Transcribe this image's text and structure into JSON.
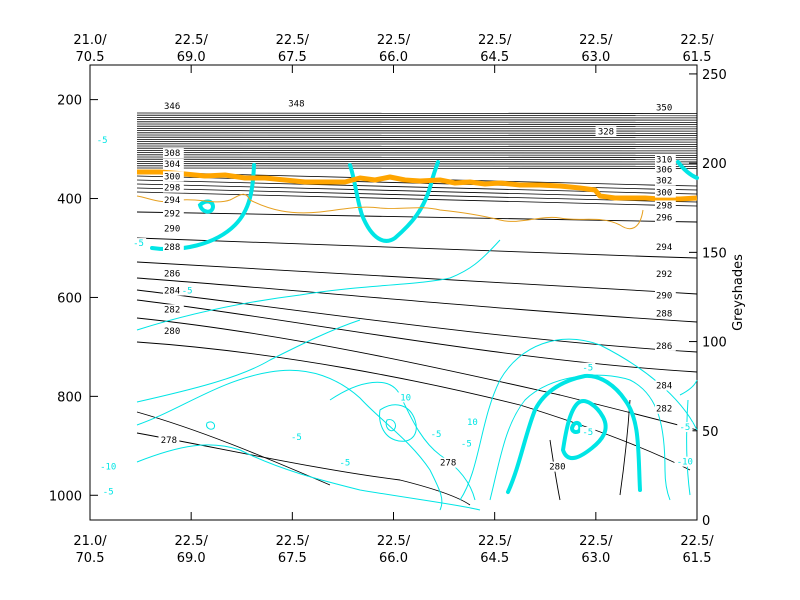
{
  "chart_data": {
    "type": "contour",
    "right_axis_label": "Greyshades",
    "x_ticks_top": [
      {
        "l1": "21.0/",
        "l2": "70.5"
      },
      {
        "l1": "22.5/",
        "l2": "69.0"
      },
      {
        "l1": "22.5/",
        "l2": "67.5"
      },
      {
        "l1": "22.5/",
        "l2": "66.0"
      },
      {
        "l1": "22.5/",
        "l2": "64.5"
      },
      {
        "l1": "22.5/",
        "l2": "63.0"
      },
      {
        "l1": "22.5/",
        "l2": "61.5"
      }
    ],
    "x_ticks_bottom": [
      {
        "l1": "21.0/",
        "l2": "70.5"
      },
      {
        "l1": "22.5/",
        "l2": "69.0"
      },
      {
        "l1": "22.5/",
        "l2": "67.5"
      },
      {
        "l1": "22.5/",
        "l2": "66.0"
      },
      {
        "l1": "22.5/",
        "l2": "64.5"
      },
      {
        "l1": "22.5/",
        "l2": "63.0"
      },
      {
        "l1": "22.5/",
        "l2": "61.5"
      }
    ],
    "y_left": {
      "ylim": [
        1050,
        130
      ],
      "ticks": [
        200,
        400,
        600,
        800,
        1000
      ],
      "labels": [
        "200",
        "400",
        "600",
        "800",
        "1000"
      ]
    },
    "y_right": {
      "ylim": [
        0,
        255
      ],
      "ticks": [
        0,
        50,
        100,
        150,
        200,
        250
      ],
      "labels": [
        "0",
        "50",
        "100",
        "150",
        "200",
        "250"
      ]
    },
    "isentrope_labels_right": [
      {
        "p": 214,
        "text": "350"
      },
      {
        "p": 319,
        "text": "310"
      },
      {
        "p": 339,
        "text": "306"
      },
      {
        "p": 362,
        "text": "302"
      },
      {
        "p": 386,
        "text": "300"
      },
      {
        "p": 412,
        "text": "298"
      },
      {
        "p": 436,
        "text": "296"
      },
      {
        "p": 496,
        "text": "294"
      },
      {
        "p": 551,
        "text": "292"
      },
      {
        "p": 594,
        "text": "290"
      },
      {
        "p": 630,
        "text": "288"
      },
      {
        "p": 696,
        "text": "286"
      },
      {
        "p": 776,
        "text": "284"
      },
      {
        "p": 823,
        "text": "282"
      }
    ],
    "isentrope_labels_left": [
      {
        "p": 211,
        "text": "346"
      },
      {
        "p": 306,
        "text": "308"
      },
      {
        "p": 328,
        "text": "304"
      },
      {
        "p": 353,
        "text": "300"
      },
      {
        "p": 376,
        "text": "298"
      },
      {
        "p": 401,
        "text": "294"
      },
      {
        "p": 428,
        "text": "292"
      },
      {
        "p": 459,
        "text": "290"
      },
      {
        "p": 496,
        "text": "288"
      },
      {
        "p": 550,
        "text": "286"
      },
      {
        "p": 584,
        "text": "284"
      },
      {
        "p": 622,
        "text": "282"
      },
      {
        "p": 666,
        "text": "280"
      }
    ],
    "isentrope_labels_mid": [
      {
        "x": 0.34,
        "p": 206,
        "text": "348"
      },
      {
        "x": 0.85,
        "p": 262,
        "text": "328"
      },
      {
        "x": 0.13,
        "p": 886,
        "text": "278"
      },
      {
        "x": 0.59,
        "p": 932,
        "text": "278"
      },
      {
        "x": 0.77,
        "p": 940,
        "text": "280"
      }
    ],
    "wind_labels": [
      {
        "x": 0.02,
        "p": 280,
        "text": "-5"
      },
      {
        "x": 0.08,
        "p": 488,
        "text": "-5"
      },
      {
        "x": 0.16,
        "p": 584,
        "text": "-5"
      },
      {
        "x": 0.52,
        "p": 800,
        "text": "10"
      },
      {
        "x": 0.62,
        "p": 893,
        "text": "-5"
      },
      {
        "x": 0.57,
        "p": 874,
        "text": "-5"
      },
      {
        "x": 0.63,
        "p": 850,
        "text": "10"
      },
      {
        "x": 0.03,
        "p": 940,
        "text": "-10"
      },
      {
        "x": 0.03,
        "p": 990,
        "text": "-5"
      },
      {
        "x": 0.42,
        "p": 932,
        "text": "-5"
      },
      {
        "x": 0.34,
        "p": 880,
        "text": "-5"
      },
      {
        "x": 0.82,
        "p": 870,
        "text": "-5"
      },
      {
        "x": 0.98,
        "p": 860,
        "text": "-5"
      },
      {
        "x": 0.98,
        "p": 930,
        "text": "-10"
      },
      {
        "x": 0.82,
        "p": 740,
        "text": "-5"
      }
    ],
    "grid": false,
    "colors": {
      "isentropes": "#000000",
      "wind": "#00e5e5",
      "tropopause_thick": "#ffa500",
      "tropopause_thin": "#e6a020",
      "frame": "#000000"
    }
  }
}
